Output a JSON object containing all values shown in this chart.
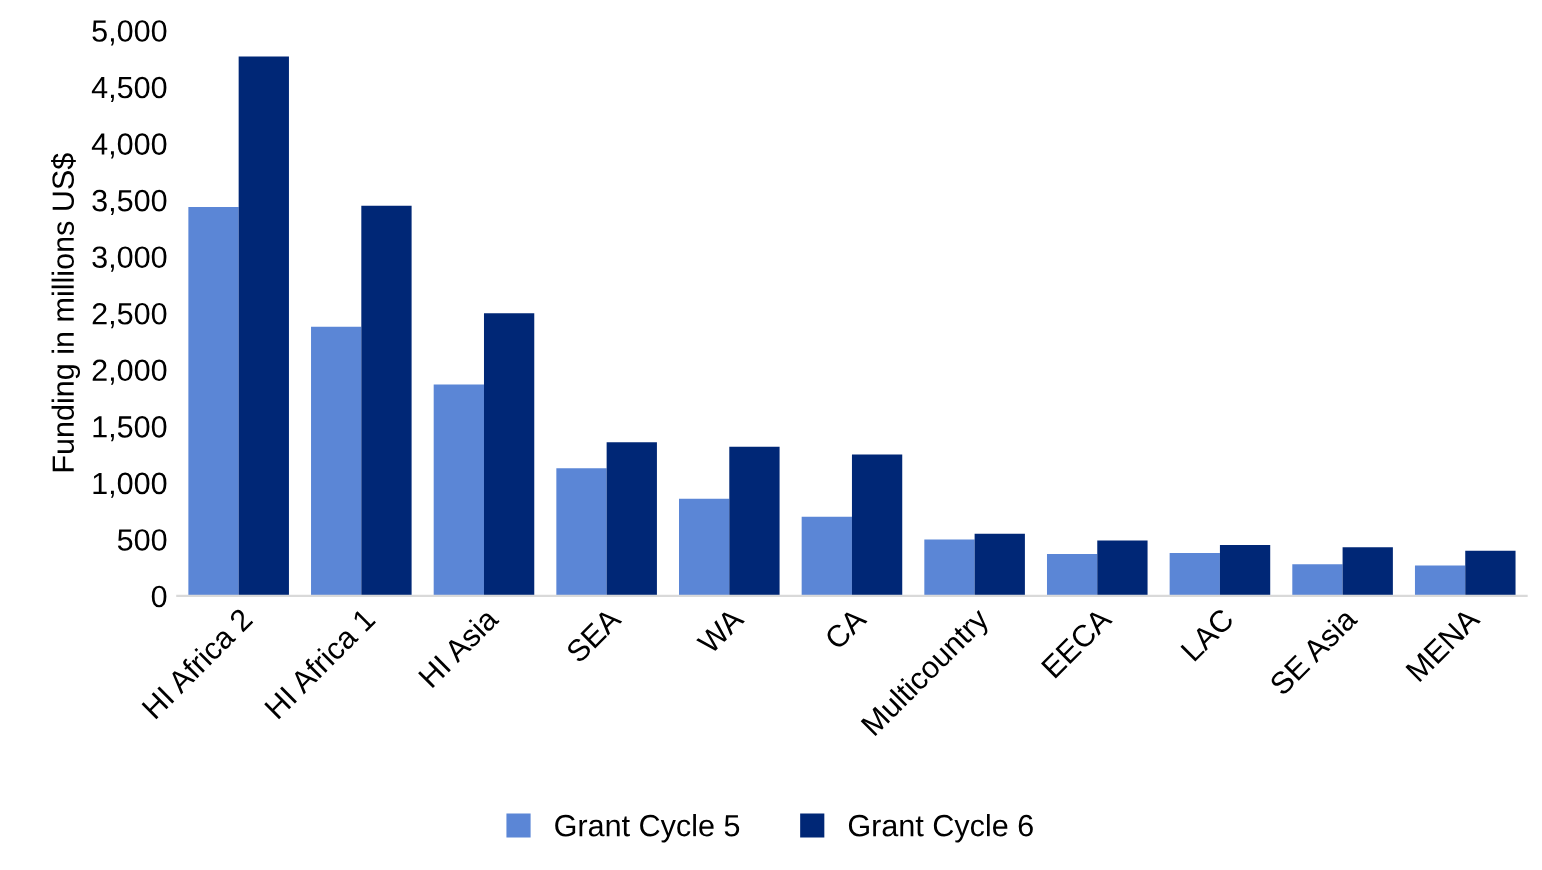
{
  "chart_data": {
    "type": "bar",
    "ylabel": "Funding in millions US$",
    "categories": [
      "HI Africa 2",
      "HI Africa 1",
      "HI Asia",
      "SEA",
      "WA",
      "CA",
      "Multicountry",
      "EECA",
      "LAC",
      "SE Asia",
      "MENA"
    ],
    "series": [
      {
        "name": "Grant Cycle 5",
        "color": "#5b86d6",
        "values": [
          3440,
          2380,
          1870,
          1130,
          860,
          700,
          500,
          370,
          380,
          280,
          270
        ]
      },
      {
        "name": "Grant Cycle 6",
        "color": "#002776",
        "values": [
          4770,
          3450,
          2500,
          1360,
          1320,
          1250,
          550,
          490,
          450,
          430,
          400
        ]
      }
    ],
    "ylim": [
      0,
      5000
    ],
    "yticks": [
      {
        "value": 0,
        "label": "0"
      },
      {
        "value": 500,
        "label": "500"
      },
      {
        "value": 1000,
        "label": "1,000"
      },
      {
        "value": 1500,
        "label": "1,500"
      },
      {
        "value": 2000,
        "label": "2,000"
      },
      {
        "value": 2500,
        "label": "2,500"
      },
      {
        "value": 3000,
        "label": "3,000"
      },
      {
        "value": 3500,
        "label": "3,500"
      },
      {
        "value": 4000,
        "label": "4,000"
      },
      {
        "value": 4500,
        "label": "4,500"
      },
      {
        "value": 5000,
        "label": "5,000"
      }
    ],
    "grid": false,
    "legend": "bottom"
  }
}
